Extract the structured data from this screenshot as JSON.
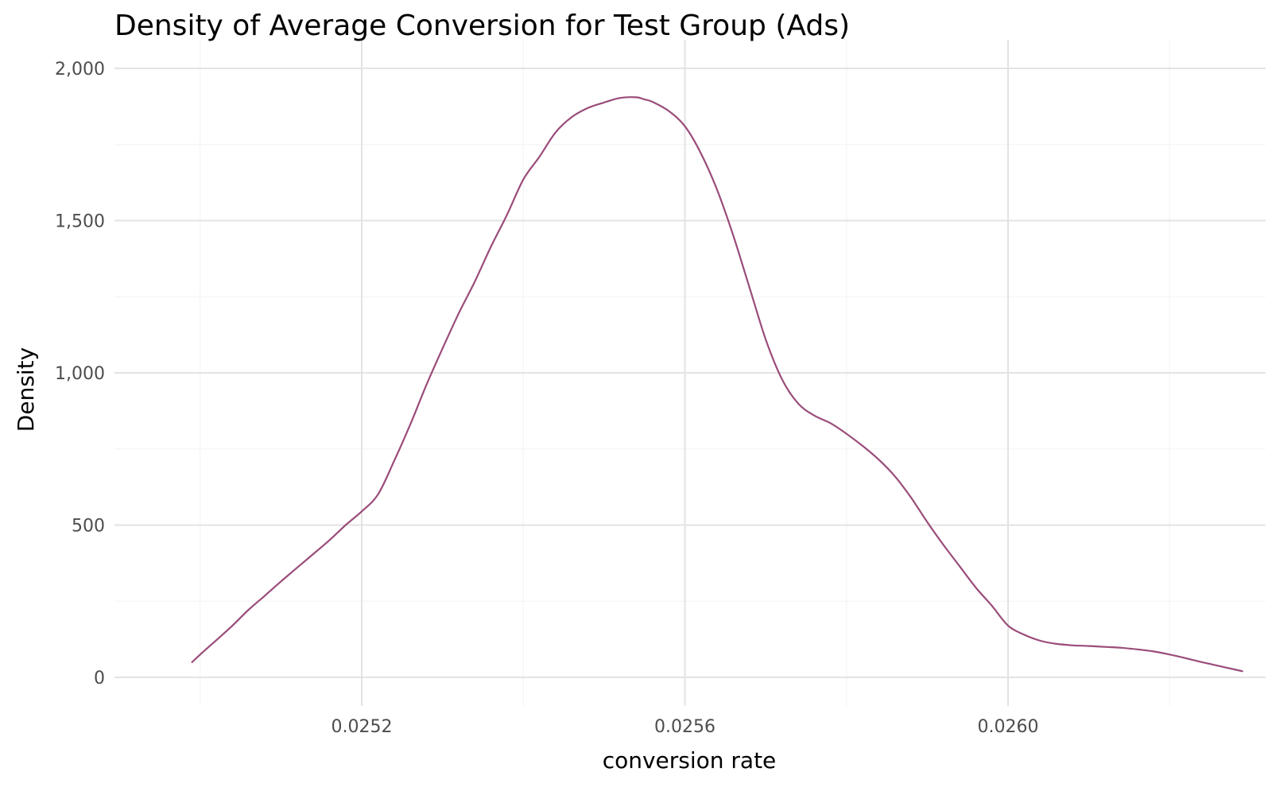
{
  "chart_data": {
    "type": "line",
    "title": "Density of Average Conversion for Test Group (Ads)",
    "xlabel": "conversion rate",
    "ylabel": "Density",
    "xlim": [
      0.02499,
      0.02631
    ],
    "ylim": [
      -150,
      2000
    ],
    "x_ticks": [
      0.0252,
      0.0256,
      0.026
    ],
    "x_tick_labels": [
      "0.0252",
      "0.0256",
      "0.0260"
    ],
    "x_minor_ticks": [
      0.025,
      0.0254,
      0.0258,
      0.0262
    ],
    "y_ticks": [
      0,
      500,
      1000,
      1500,
      2000
    ],
    "y_tick_labels": [
      "0",
      "500",
      "1,000",
      "1,500",
      "2,000"
    ],
    "y_minor_ticks": [
      250,
      750,
      1250,
      1750
    ],
    "grid": true,
    "legend": "none",
    "series": [
      {
        "color": "#9a4c7a",
        "x": [
          0.02499,
          0.025,
          0.02502,
          0.02504,
          0.02506,
          0.02508,
          0.0251,
          0.02512,
          0.02514,
          0.02516,
          0.02518,
          0.0252,
          0.02522,
          0.02524,
          0.02526,
          0.02528,
          0.0253,
          0.02532,
          0.02534,
          0.02536,
          0.02538,
          0.0254,
          0.02542,
          0.02544,
          0.02546,
          0.02548,
          0.0255,
          0.02552,
          0.02554,
          0.02555,
          0.02556,
          0.02558,
          0.0256,
          0.02562,
          0.02564,
          0.02566,
          0.02568,
          0.0257,
          0.02572,
          0.02574,
          0.02576,
          0.02578,
          0.0258,
          0.02582,
          0.02584,
          0.02586,
          0.02588,
          0.0259,
          0.02592,
          0.02594,
          0.02596,
          0.02598,
          0.026,
          0.02602,
          0.02604,
          0.02606,
          0.02608,
          0.0261,
          0.02612,
          0.02614,
          0.02616,
          0.02618,
          0.0262,
          0.02622,
          0.02624,
          0.02626,
          0.02628,
          0.02629
        ],
        "y": [
          50,
          75,
          122,
          170,
          222,
          268,
          315,
          360,
          405,
          450,
          500,
          545,
          600,
          710,
          830,
          960,
          1080,
          1195,
          1300,
          1415,
          1520,
          1635,
          1710,
          1790,
          1840,
          1870,
          1888,
          1903,
          1905,
          1898,
          1890,
          1860,
          1810,
          1720,
          1600,
          1450,
          1280,
          1110,
          980,
          900,
          860,
          835,
          800,
          760,
          715,
          660,
          590,
          510,
          435,
          365,
          295,
          235,
          170,
          140,
          120,
          110,
          105,
          103,
          100,
          97,
          92,
          85,
          75,
          63,
          50,
          38,
          26,
          20
        ]
      }
    ]
  }
}
